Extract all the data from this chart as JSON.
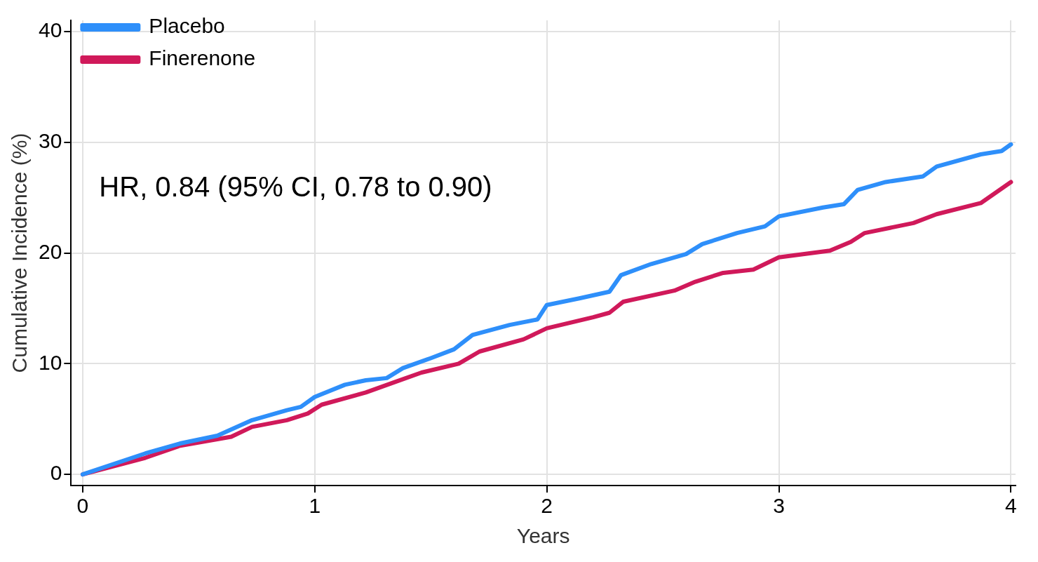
{
  "chart_data": {
    "type": "line",
    "xlabel": "Years",
    "ylabel": "Cumulative Incidence (%)",
    "xlim": [
      -0.05,
      4.02
    ],
    "ylim": [
      -1,
      41
    ],
    "xticks": [
      0,
      1,
      2,
      3,
      4
    ],
    "yticks": [
      0,
      10,
      20,
      30,
      40
    ],
    "grid": true,
    "legend": "top left",
    "line_style": "solid",
    "marker": "none",
    "annotations": [
      "HR, 0.84 (95% CI, 0.78 to 0.90)"
    ],
    "series": [
      {
        "name": "Placebo",
        "color": "#2e8ffa",
        "x": [
          0,
          0.27,
          0.42,
          0.58,
          0.73,
          0.88,
          0.94,
          1.0,
          1.13,
          1.22,
          1.31,
          1.38,
          1.5,
          1.6,
          1.68,
          1.84,
          1.96,
          2.0,
          2.14,
          2.27,
          2.32,
          2.45,
          2.6,
          2.67,
          2.82,
          2.94,
          3.0,
          3.19,
          3.28,
          3.34,
          3.46,
          3.62,
          3.68,
          3.87,
          3.96,
          4.0
        ],
        "values": [
          0,
          1.9,
          2.8,
          3.5,
          4.9,
          5.8,
          6.1,
          7.0,
          8.1,
          8.5,
          8.7,
          9.6,
          10.5,
          11.3,
          12.6,
          13.5,
          14.0,
          15.3,
          15.9,
          16.5,
          18.0,
          19.0,
          19.9,
          20.8,
          21.8,
          22.4,
          23.3,
          24.1,
          24.4,
          25.7,
          26.4,
          26.9,
          27.8,
          28.9,
          29.2,
          29.8
        ]
      },
      {
        "name": "Finerenone",
        "color": "#d0195a",
        "x": [
          0,
          0.27,
          0.42,
          0.64,
          0.73,
          0.88,
          0.97,
          1.03,
          1.22,
          1.34,
          1.46,
          1.62,
          1.71,
          1.9,
          2.0,
          2.2,
          2.27,
          2.33,
          2.55,
          2.64,
          2.76,
          2.89,
          3.0,
          3.22,
          3.31,
          3.37,
          3.58,
          3.68,
          3.87,
          4.0
        ],
        "values": [
          0,
          1.5,
          2.6,
          3.4,
          4.3,
          4.9,
          5.5,
          6.3,
          7.4,
          8.3,
          9.2,
          10.0,
          11.1,
          12.2,
          13.2,
          14.2,
          14.6,
          15.6,
          16.6,
          17.4,
          18.2,
          18.5,
          19.6,
          20.2,
          21.0,
          21.8,
          22.7,
          23.5,
          24.5,
          26.4
        ]
      }
    ]
  }
}
